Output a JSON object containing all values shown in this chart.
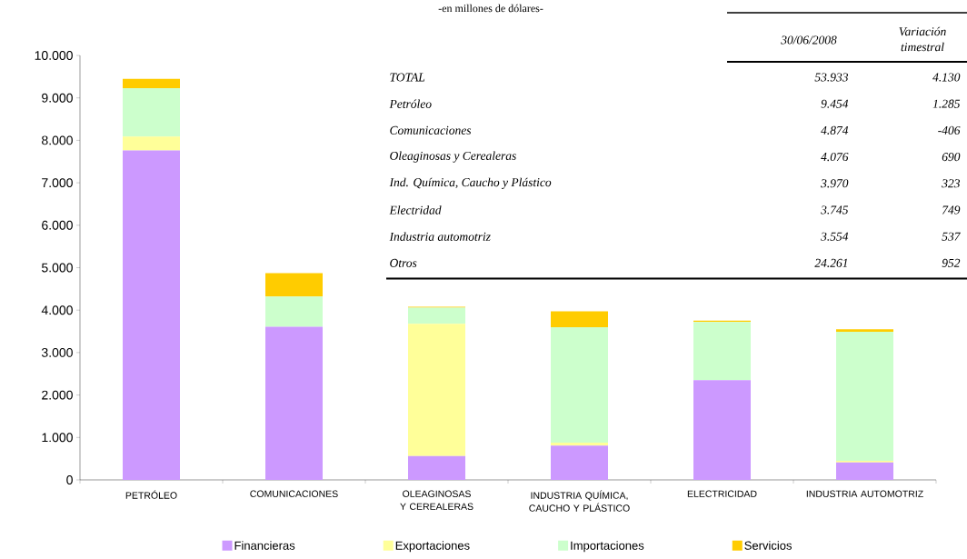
{
  "chart_data": {
    "type": "bar",
    "stacked": true,
    "subtitle": "-en millones de dólares-",
    "categories": [
      "PETRÓLEO",
      "COMUNICACIONES",
      "OLEAGINOSAS Y CEREALERAS",
      "INDUSTRIA QUÍMICA, CAUCHO Y PLÁSTICO",
      "ELECTRICIDAD",
      "INDUSTRIA AUTOMOTRIZ"
    ],
    "series": [
      {
        "name": "Financieras",
        "color": "#cc99ff",
        "values": [
          7760,
          3610,
          560,
          810,
          2350,
          410
        ]
      },
      {
        "name": "Exportaciones",
        "color": "#ffff99",
        "values": [
          330,
          0,
          3120,
          70,
          0,
          40
        ]
      },
      {
        "name": "Importaciones",
        "color": "#ccffcc",
        "values": [
          1140,
          710,
          380,
          2720,
          1370,
          3040
        ]
      },
      {
        "name": "Servicios",
        "color": "#ffcc00",
        "values": [
          220,
          550,
          20,
          370,
          30,
          60
        ]
      }
    ],
    "ylim": [
      0,
      10000
    ],
    "yticks": [
      0,
      {
        "value": 1000,
        "label": "1.000"
      },
      {
        "value": 2000,
        "label": "2.000"
      },
      {
        "value": 3000,
        "label": "3.000"
      },
      {
        "value": 4000,
        "label": "4.000"
      },
      {
        "value": 5000,
        "label": "5.000"
      },
      {
        "value": 6000,
        "label": "6.000"
      },
      {
        "value": 7000,
        "label": "7.000"
      },
      {
        "value": 8000,
        "label": "8.000"
      },
      {
        "value": 9000,
        "label": "9.000"
      },
      {
        "value": 10000,
        "label": "10.000"
      }
    ],
    "legend": "bottom",
    "annotations": [
      "30/06/2008",
      "Variación timestral",
      "TOTAL",
      "53.933",
      "4.130",
      "Petróleo",
      "9.454",
      "1.285",
      "Comunicaciones",
      "4.874",
      "-406",
      "Oleaginosas y Cerealeras",
      "4.076",
      "690",
      "Ind. Química, Caucho y Plástico",
      "3.970",
      "323",
      "Electridad",
      "3.745",
      "749",
      "Industria automotriz",
      "3.554",
      "537",
      "Otros",
      "24.261",
      "952"
    ]
  }
}
